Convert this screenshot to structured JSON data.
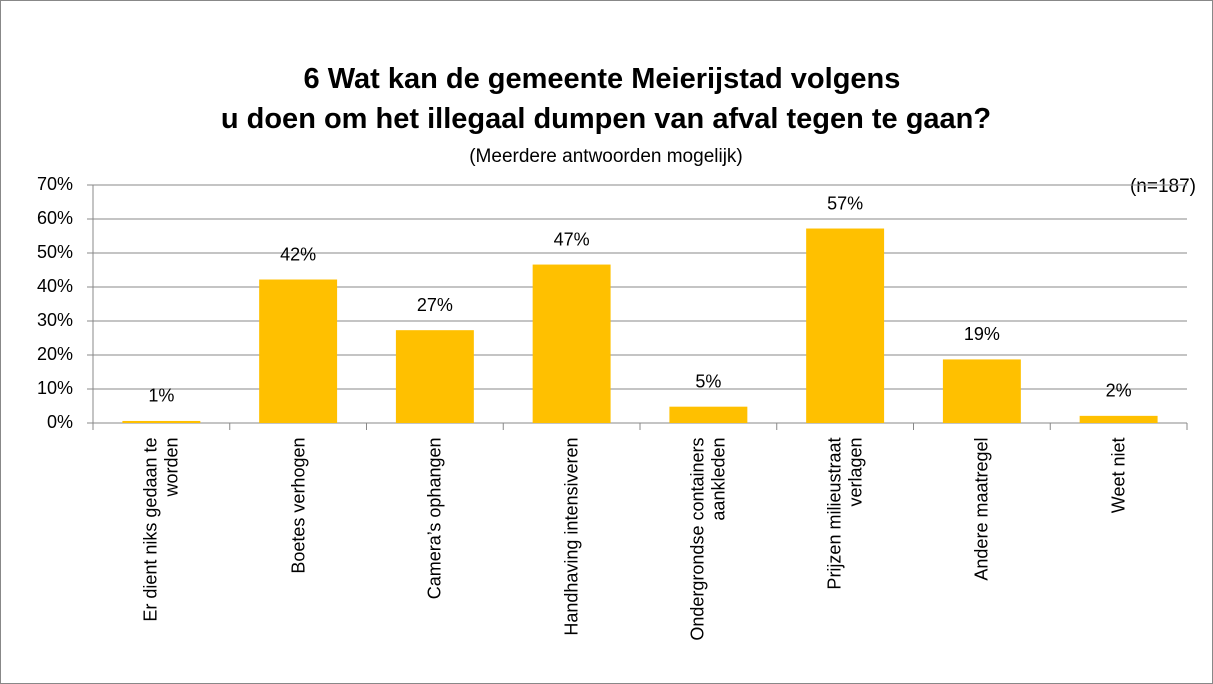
{
  "chart_data": {
    "type": "bar",
    "title": "6 Wat kan de gemeente Meierijstad volgens u doen om het illegaal dumpen van afval tegen te gaan?",
    "subtitle": "(Meerdere antwoorden mogelijk)",
    "annotation": "(n=187)",
    "categories": [
      "Er dient niks gedaan te worden",
      "Boetes verhogen",
      "Camera’s ophangen",
      "Handhaving intensiveren",
      "Ondergrondse containers aankleden",
      "Prijzen milieustraat verlagen",
      "Andere maatregel",
      "Weet niet"
    ],
    "values": [
      0.6,
      42.2,
      27.3,
      46.6,
      4.8,
      57.2,
      18.7,
      2.1
    ],
    "value_labels": [
      "1%",
      "42%",
      "27%",
      "47%",
      "5%",
      "57%",
      "19%",
      "2%"
    ],
    "color": "#ffc000",
    "ylim": [
      0,
      70
    ],
    "yticks": [
      {
        "value": 0,
        "label": "0%"
      },
      {
        "value": 10,
        "label": "10%"
      },
      {
        "value": 20,
        "label": "20%"
      },
      {
        "value": 30,
        "label": "30%"
      },
      {
        "value": 40,
        "label": "40%"
      },
      {
        "value": 50,
        "label": "50%"
      },
      {
        "value": 60,
        "label": "60%"
      },
      {
        "value": 70,
        "label": "70%"
      }
    ],
    "grid": true
  }
}
